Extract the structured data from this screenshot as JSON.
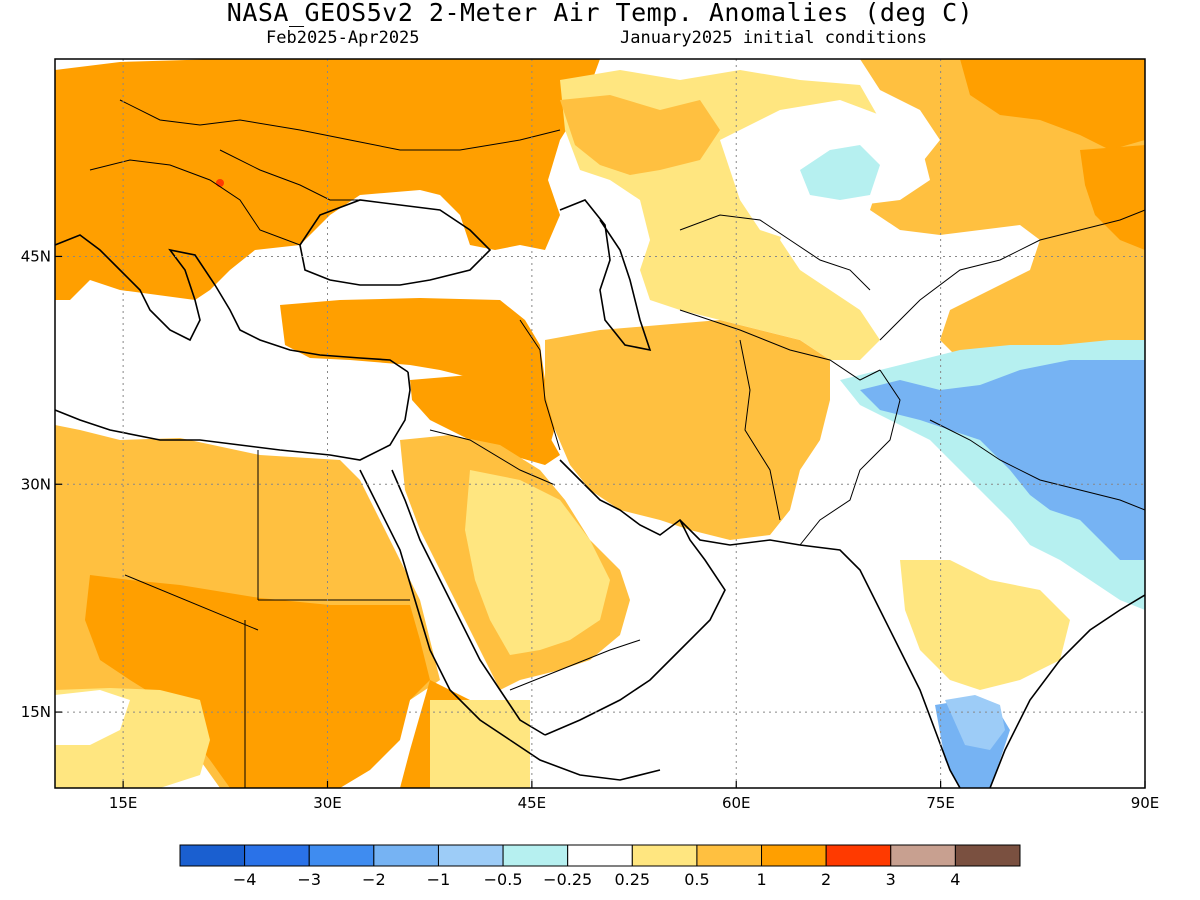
{
  "title": "NASA_GEOS5v2 2-Meter Air Temp. Anomalies (deg C)",
  "subtitle_left": "Feb2025-Apr2025",
  "subtitle_right": "January2025 initial conditions",
  "map": {
    "lon_range": [
      10,
      90
    ],
    "lat_range": [
      10,
      58
    ],
    "lon_ticks": [
      "15E",
      "30E",
      "45E",
      "60E",
      "75E",
      "90E"
    ],
    "lat_ticks": [
      "45N",
      "30N",
      "15N"
    ],
    "lon_tick_values": [
      15,
      30,
      45,
      60,
      75,
      90
    ],
    "lat_tick_values": [
      45,
      30,
      15
    ],
    "gridlines": "dotted"
  },
  "colorbar": {
    "colors": [
      "#1a5fd0",
      "#2a72e8",
      "#3f8cf0",
      "#76b3f3",
      "#9dccf7",
      "#b6f0f0",
      "#ffffff",
      "#ffe680",
      "#ffc040",
      "#ff9f00",
      "#ff3a00",
      "#c8a090",
      "#7a5040"
    ],
    "labels": [
      "-4",
      "-3",
      "-2",
      "-1",
      "-0.5",
      "-0.25",
      "0.25",
      "0.5",
      "1",
      "2",
      "3",
      "4"
    ]
  },
  "legend_colors": {
    "strong_warm": "#ff9f00",
    "warm": "#ffc040",
    "mild_warm": "#ffe680",
    "neutral": "#ffffff",
    "mild_cool": "#b6f0f0",
    "cool": "#9dccf7",
    "cold": "#76b3f3",
    "colder": "#3f8cf0",
    "hot_spot": "#ff3a00"
  }
}
